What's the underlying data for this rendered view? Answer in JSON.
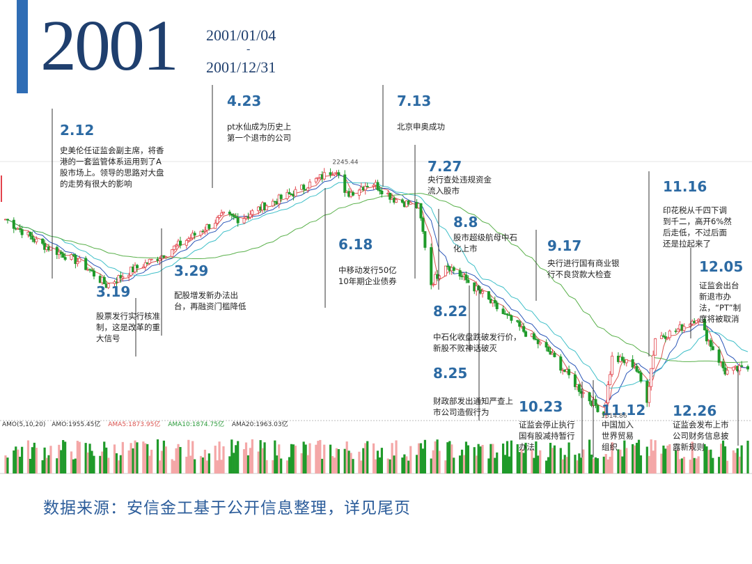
{
  "header": {
    "year": "2001",
    "date_start": "2001/01/04",
    "date_sep": "-",
    "date_end": "2001/12/31"
  },
  "footer": {
    "source": "数据来源：安信金工基于公开信息整理，详见尾页"
  },
  "colors": {
    "accent": "#2f6db5",
    "up": "#e2434b",
    "down": "#1f9a2a",
    "ma5": "#d9534f",
    "ma10": "#2a56b8",
    "ma20": "#3fbfc8",
    "ma60": "#59b04a",
    "event_date": "#2c6aa3"
  },
  "chart_data": {
    "type": "candlestick",
    "x_range": [
      "2001-01-04",
      "2001-12-31"
    ],
    "y_range": [
      1500,
      2260
    ],
    "peak_label": "2245.44",
    "trough_label": "1514.86",
    "volume_legend": {
      "amo": "AMO(5,10,20)",
      "amo_value": "AMO:1955.45亿",
      "ama5": "AMA5:1873.95亿",
      "ama10": "AMA10:1874.75亿",
      "ama20": "AMA20:1963.03亿"
    },
    "anchors": [
      {
        "date": "2001-01-04",
        "value": 2090
      },
      {
        "date": "2001-01-20",
        "value": 2020
      },
      {
        "date": "2001-02-10",
        "value": 1960
      },
      {
        "date": "2001-02-22",
        "value": 1895
      },
      {
        "date": "2001-03-05",
        "value": 1935
      },
      {
        "date": "2001-03-20",
        "value": 1980
      },
      {
        "date": "2001-04-05",
        "value": 2040
      },
      {
        "date": "2001-04-20",
        "value": 2100
      },
      {
        "date": "2001-04-28",
        "value": 2090
      },
      {
        "date": "2001-05-10",
        "value": 2130
      },
      {
        "date": "2001-05-25",
        "value": 2170
      },
      {
        "date": "2001-06-14",
        "value": 2240
      },
      {
        "date": "2001-06-18",
        "value": 2160
      },
      {
        "date": "2001-07-01",
        "value": 2200
      },
      {
        "date": "2001-07-12",
        "value": 2150
      },
      {
        "date": "2001-07-24",
        "value": 2125
      },
      {
        "date": "2001-07-30",
        "value": 1900
      },
      {
        "date": "2001-08-06",
        "value": 1960
      },
      {
        "date": "2001-08-16",
        "value": 1910
      },
      {
        "date": "2001-09-05",
        "value": 1800
      },
      {
        "date": "2001-09-25",
        "value": 1700
      },
      {
        "date": "2001-10-10",
        "value": 1590
      },
      {
        "date": "2001-10-22",
        "value": 1515
      },
      {
        "date": "2001-10-26",
        "value": 1680
      },
      {
        "date": "2001-11-06",
        "value": 1660
      },
      {
        "date": "2001-11-12",
        "value": 1560
      },
      {
        "date": "2001-11-16",
        "value": 1740
      },
      {
        "date": "2001-11-26",
        "value": 1760
      },
      {
        "date": "2001-12-06",
        "value": 1800
      },
      {
        "date": "2001-12-20",
        "value": 1640
      },
      {
        "date": "2001-12-31",
        "value": 1650
      }
    ],
    "events": [
      {
        "date": "2.12",
        "lines": [
          "史美伦任证监会副主席，将香",
          "港的一套监管体系运用到了A",
          "股市场上。领导的思路对大盘",
          "的走势有很大的影响"
        ]
      },
      {
        "date": "3.19",
        "lines": [
          "股票发行实行核准",
          "制，这是改革的重",
          "大信号"
        ]
      },
      {
        "date": "3.29",
        "lines": [
          "配股增发新办法出",
          "台，再融资门槛降低"
        ]
      },
      {
        "date": "4.23",
        "lines": [
          "pt水仙成为历史上",
          "第一个退市的公司"
        ]
      },
      {
        "date": "6.18",
        "lines": [
          "中移动发行50亿",
          "10年期企业债券"
        ]
      },
      {
        "date": "7.13",
        "lines": [
          "北京申奥成功"
        ]
      },
      {
        "date": "7.27",
        "lines": [
          "央行查处违规资金",
          "流入股市"
        ]
      },
      {
        "date": "8.8",
        "lines": [
          "股市超级航母中石",
          "化上市"
        ]
      },
      {
        "date": "8.22",
        "lines": [
          "中石化收盘跌破发行价，",
          "新股不败神话破灭"
        ]
      },
      {
        "date": "8.25",
        "lines": [
          "财政部发出通知严查上",
          "市公司造假行为"
        ]
      },
      {
        "date": "9.17",
        "lines": [
          "央行进行国有商业银",
          "行不良贷款大检查"
        ]
      },
      {
        "date": "10.23",
        "lines": [
          "证监会停止执行",
          "国有股减持暂行",
          "办法"
        ]
      },
      {
        "date": "11.12",
        "lines": [
          "中国加入",
          "世界贸易",
          "组织"
        ]
      },
      {
        "date": "11.16",
        "lines": [
          "印花税从千四下调",
          "到千二，高开6%然",
          "后走低，不过后面",
          "还是拉起来了"
        ]
      },
      {
        "date": "12.05",
        "lines": [
          "证监会出台",
          "新退市办",
          "法，“PT”制",
          "度将被取消"
        ]
      },
      {
        "date": "12.26",
        "lines": [
          "证监会发布上市",
          "公司财务信息披",
          "露新规则"
        ]
      }
    ]
  }
}
